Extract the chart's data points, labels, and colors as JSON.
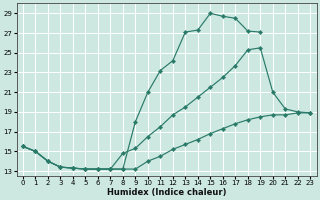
{
  "xlabel": "Humidex (Indice chaleur)",
  "bg_color": "#cce8e0",
  "grid_color": "#ffffff",
  "line_color": "#2a7a6a",
  "xlim": [
    -0.5,
    23.5
  ],
  "ylim": [
    12.5,
    30.0
  ],
  "xtick_labels": [
    "0",
    "1",
    "2",
    "3",
    "4",
    "5",
    "6",
    "7",
    "8",
    "9",
    "10",
    "11",
    "12",
    "13",
    "14",
    "15",
    "16",
    "17",
    "18",
    "19",
    "20",
    "21",
    "22",
    "23"
  ],
  "yticks": [
    13,
    15,
    17,
    19,
    21,
    23,
    25,
    27,
    29
  ],
  "curve1_x": [
    0,
    1,
    2,
    3,
    4,
    5,
    6,
    7,
    8,
    9,
    10,
    11,
    12,
    13,
    14,
    15,
    16,
    17,
    18,
    19,
    20,
    21,
    22,
    23
  ],
  "curve1_y": [
    15.5,
    15.0,
    14.0,
    13.4,
    13.3,
    13.2,
    13.2,
    13.2,
    13.2,
    18.0,
    21.0,
    23.2,
    24.2,
    27.1,
    27.3,
    29.0,
    28.7,
    28.5,
    27.2,
    27.1,
    null,
    null,
    null,
    null
  ],
  "curve2_x": [
    0,
    1,
    2,
    3,
    4,
    5,
    6,
    7,
    8,
    9,
    10,
    11,
    12,
    13,
    14,
    15,
    16,
    17,
    18,
    19,
    20,
    21,
    22,
    23
  ],
  "curve2_y": [
    15.5,
    15.0,
    14.0,
    13.4,
    13.3,
    13.2,
    13.2,
    13.2,
    14.8,
    15.3,
    16.5,
    17.5,
    18.7,
    19.5,
    20.5,
    21.5,
    22.5,
    23.7,
    25.3,
    25.5,
    21.0,
    19.3,
    19.0,
    18.9
  ],
  "curve3_x": [
    0,
    1,
    2,
    3,
    4,
    5,
    6,
    7,
    8,
    9,
    10,
    11,
    12,
    13,
    14,
    15,
    16,
    17,
    18,
    19,
    20,
    21,
    22,
    23
  ],
  "curve3_y": [
    15.5,
    15.0,
    14.0,
    13.4,
    13.3,
    13.2,
    13.2,
    13.2,
    13.2,
    13.2,
    14.0,
    14.5,
    15.2,
    15.7,
    16.2,
    16.8,
    17.3,
    17.8,
    18.2,
    18.5,
    18.7,
    18.7,
    18.9,
    18.9
  ]
}
